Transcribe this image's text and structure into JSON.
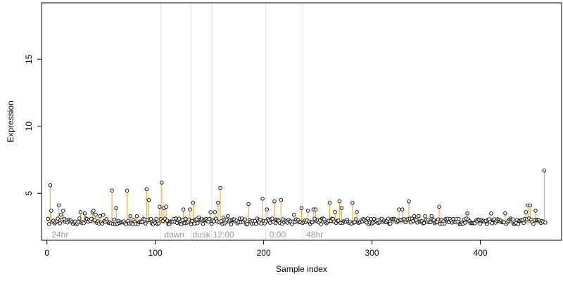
{
  "chart_data": {
    "type": "scatter",
    "xlabel": "Sample index",
    "ylabel": "Expression",
    "xlim": [
      -5,
      475
    ],
    "ylim": [
      1.5,
      19.2
    ],
    "x_ticks": [
      0,
      100,
      200,
      300,
      400
    ],
    "y_ticks": [
      5,
      10,
      15
    ],
    "baseline": 2.8,
    "colors": {
      "stem": "#f5a21a",
      "baseline": "#8fb4e0",
      "point_stroke": "#000000",
      "point_fill": "#ffffff",
      "vline": "#e0e0e0",
      "annotation": "#9a9a9a"
    },
    "vlines": [
      105,
      133,
      152,
      202,
      236
    ],
    "annotations": [
      {
        "x": 3,
        "text": "24hr"
      },
      {
        "x": 107,
        "text": "dawn"
      },
      {
        "x": 133,
        "text": "dusk"
      },
      {
        "x": 152,
        "text": "12:00"
      },
      {
        "x": 204,
        "text": "0:00"
      },
      {
        "x": 238,
        "text": "48hr"
      }
    ],
    "peaks": [
      [
        3,
        5.6
      ],
      [
        4,
        3.7
      ],
      [
        11,
        4.1
      ],
      [
        13,
        3.4
      ],
      [
        15,
        3.7
      ],
      [
        31,
        3.6
      ],
      [
        35,
        3.5
      ],
      [
        42,
        3.6
      ],
      [
        43,
        3.7
      ],
      [
        45,
        3.4
      ],
      [
        49,
        3.3
      ],
      [
        52,
        3.4
      ],
      [
        60,
        5.2
      ],
      [
        64,
        3.9
      ],
      [
        74,
        5.2
      ],
      [
        77,
        3.3
      ],
      [
        83,
        3.3
      ],
      [
        92,
        5.3
      ],
      [
        94,
        4.5
      ],
      [
        104,
        4.0
      ],
      [
        106,
        5.8
      ],
      [
        108,
        3.9
      ],
      [
        110,
        4.0
      ],
      [
        126,
        3.8
      ],
      [
        132,
        3.8
      ],
      [
        135,
        4.3
      ],
      [
        140,
        3.2
      ],
      [
        151,
        3.6
      ],
      [
        155,
        3.6
      ],
      [
        158,
        4.3
      ],
      [
        160,
        5.4
      ],
      [
        163,
        3.2
      ],
      [
        167,
        3.3
      ],
      [
        186,
        4.2
      ],
      [
        199,
        4.6
      ],
      [
        203,
        3.8
      ],
      [
        210,
        4.4
      ],
      [
        216,
        4.5
      ],
      [
        228,
        3.4
      ],
      [
        235,
        3.9
      ],
      [
        241,
        3.7
      ],
      [
        246,
        3.8
      ],
      [
        248,
        3.8
      ],
      [
        261,
        4.3
      ],
      [
        266,
        3.6
      ],
      [
        270,
        4.4
      ],
      [
        272,
        3.9
      ],
      [
        282,
        4.3
      ],
      [
        286,
        3.6
      ],
      [
        325,
        3.8
      ],
      [
        328,
        3.8
      ],
      [
        334,
        4.4
      ],
      [
        339,
        3.3
      ],
      [
        343,
        3.3
      ],
      [
        349,
        3.3
      ],
      [
        355,
        3.3
      ],
      [
        362,
        4.0
      ],
      [
        388,
        3.5
      ],
      [
        410,
        3.5
      ],
      [
        423,
        3.5
      ],
      [
        442,
        3.6
      ],
      [
        444,
        4.1
      ],
      [
        446,
        4.1
      ],
      [
        451,
        3.7
      ],
      [
        459,
        6.7
      ]
    ],
    "grid": false,
    "legend": "none"
  }
}
